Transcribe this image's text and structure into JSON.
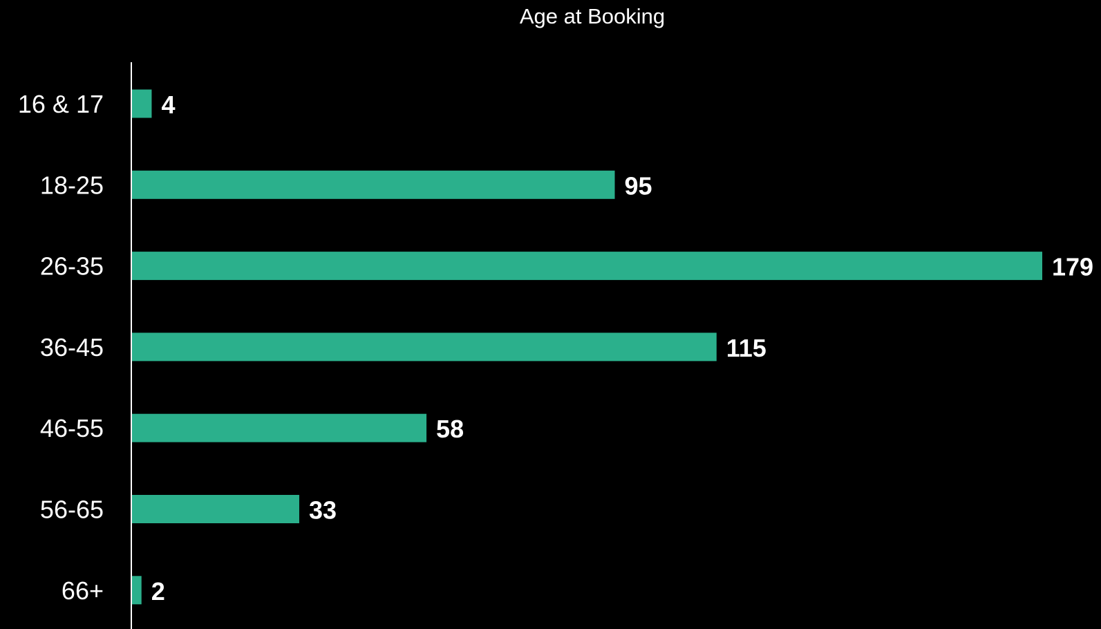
{
  "chart_data": {
    "type": "bar",
    "orientation": "horizontal",
    "title": "Age at Booking",
    "xlabel": "",
    "ylabel": "",
    "categories": [
      "16 & 17",
      "18-25",
      "26-35",
      "36-45",
      "46-55",
      "56-65",
      "66+"
    ],
    "values": [
      4,
      95,
      179,
      115,
      58,
      33,
      2
    ],
    "data_labels": [
      "4",
      "95",
      "179",
      "115",
      "58",
      "33",
      "2"
    ],
    "xlim": [
      0,
      179
    ],
    "grid": false,
    "legend": "none",
    "colors": {
      "bar": "#2bb08c",
      "background": "#000000",
      "axis": "#ffffff",
      "text": "#ffffff"
    }
  }
}
